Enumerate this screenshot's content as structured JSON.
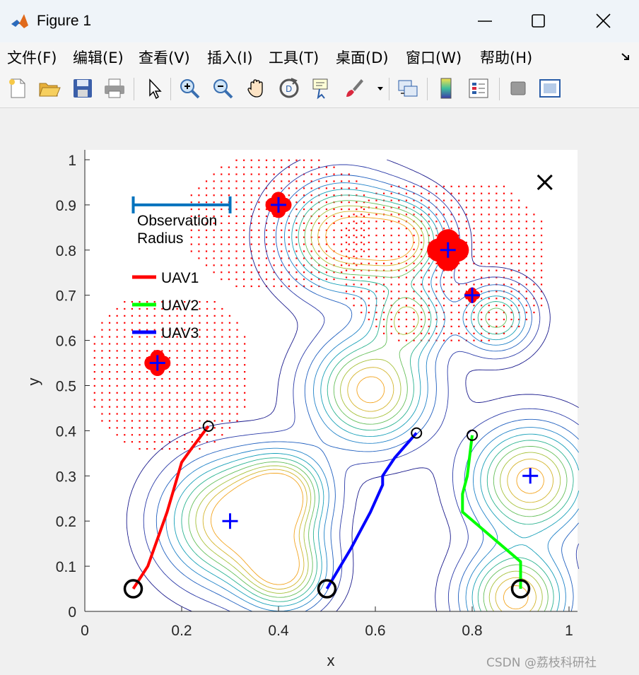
{
  "window": {
    "title": "Figure 1",
    "controls": [
      "minimize",
      "maximize",
      "close"
    ]
  },
  "menu": {
    "items": [
      "文件(F)",
      "编辑(E)",
      "查看(V)",
      "插入(I)",
      "工具(T)",
      "桌面(D)",
      "窗口(W)",
      "帮助(H)"
    ]
  },
  "toolbar": {
    "buttons": [
      "new-figure-icon",
      "open-file-icon",
      "save-icon",
      "print-icon",
      "pointer-icon",
      "zoom-in-icon",
      "zoom-out-icon",
      "pan-icon",
      "rotate-3d-icon",
      "data-cursor-icon",
      "brush-icon",
      "link-plot-icon",
      "colorbar-icon",
      "legend-icon",
      "hide-plot-tools-icon",
      "show-plot-tools-icon"
    ]
  },
  "watermark": "CSDN @荔枝科研社",
  "chart_data": {
    "type": "scatter",
    "xlabel": "x",
    "ylabel": "y",
    "xlim": [
      0,
      1
    ],
    "ylim": [
      0,
      1
    ],
    "xticks": [
      "0",
      "0.2",
      "0.4",
      "0.6",
      "0.8",
      "1"
    ],
    "yticks": [
      "0",
      "0.1",
      "0.2",
      "0.3",
      "0.4",
      "0.5",
      "0.6",
      "0.7",
      "0.8",
      "0.9",
      "1"
    ],
    "annotation": {
      "line1": "Observation",
      "line2": "Radius",
      "bar_x": [
        0.1,
        0.3
      ],
      "bar_y": 0.9
    },
    "legend": {
      "placement": "upper-left",
      "entries": [
        {
          "label": "UAV1",
          "color": "#ff0000"
        },
        {
          "label": "UAV2",
          "color": "#00ff00"
        },
        {
          "label": "UAV3",
          "color": "#0000ff"
        }
      ]
    },
    "goal_marker": {
      "x": 0.95,
      "y": 0.95,
      "symbol": "x"
    },
    "targets": [
      {
        "x": 0.3,
        "y": 0.2
      },
      {
        "x": 0.92,
        "y": 0.3
      },
      {
        "x": 0.15,
        "y": 0.55
      },
      {
        "x": 0.8,
        "y": 0.7
      },
      {
        "x": 0.75,
        "y": 0.8
      },
      {
        "x": 0.4,
        "y": 0.9
      }
    ],
    "discovered_targets": [
      {
        "x": 0.15,
        "y": 0.55,
        "size": "small"
      },
      {
        "x": 0.4,
        "y": 0.9,
        "size": "small"
      },
      {
        "x": 0.75,
        "y": 0.8,
        "size": "large"
      },
      {
        "x": 0.8,
        "y": 0.7,
        "size": "tiny"
      }
    ],
    "observed_regions": [
      {
        "x0": 0.02,
        "x1": 0.33,
        "y0": 0.36,
        "y1": 0.7
      },
      {
        "x0": 0.22,
        "x1": 0.58,
        "y0": 0.72,
        "y1": 1.0
      },
      {
        "x0": 0.54,
        "x1": 0.95,
        "y0": 0.6,
        "y1": 0.95
      }
    ],
    "density_peaks": [
      {
        "x": 0.3,
        "y": 0.2,
        "s": 0.09,
        "a": 1.0
      },
      {
        "x": 0.41,
        "y": 0.26,
        "s": 0.06,
        "a": 0.9
      },
      {
        "x": 0.41,
        "y": 0.09,
        "s": 0.06,
        "a": 0.9
      },
      {
        "x": 0.59,
        "y": 0.49,
        "s": 0.08,
        "a": 1.0
      },
      {
        "x": 0.53,
        "y": 0.83,
        "s": 0.08,
        "a": 1.0
      },
      {
        "x": 0.66,
        "y": 0.82,
        "s": 0.06,
        "a": 0.8
      },
      {
        "x": 0.67,
        "y": 0.65,
        "s": 0.05,
        "a": 0.7
      },
      {
        "x": 0.85,
        "y": 0.65,
        "s": 0.05,
        "a": 0.7
      },
      {
        "x": 0.92,
        "y": 0.29,
        "s": 0.08,
        "a": 1.0
      },
      {
        "x": 0.89,
        "y": 0.03,
        "s": 0.07,
        "a": 1.0
      }
    ],
    "series": [
      {
        "name": "UAV1",
        "color": "#ff0000",
        "path": [
          [
            0.1,
            0.05
          ],
          [
            0.13,
            0.1
          ],
          [
            0.17,
            0.22
          ],
          [
            0.2,
            0.33
          ],
          [
            0.22,
            0.36
          ],
          [
            0.255,
            0.41
          ]
        ],
        "start": [
          0.1,
          0.05
        ],
        "end": [
          0.255,
          0.41
        ]
      },
      {
        "name": "UAV2",
        "color": "#00ff00",
        "path": [
          [
            0.9,
            0.05
          ],
          [
            0.9,
            0.11
          ],
          [
            0.78,
            0.22
          ],
          [
            0.78,
            0.26
          ],
          [
            0.79,
            0.3
          ],
          [
            0.8,
            0.39
          ]
        ],
        "start": [
          0.9,
          0.05
        ],
        "end": [
          0.8,
          0.39
        ]
      },
      {
        "name": "UAV3",
        "color": "#0000ff",
        "path": [
          [
            0.5,
            0.05
          ],
          [
            0.55,
            0.14
          ],
          [
            0.59,
            0.22
          ],
          [
            0.615,
            0.28
          ],
          [
            0.615,
            0.3
          ],
          [
            0.64,
            0.34
          ],
          [
            0.685,
            0.395
          ]
        ],
        "start": [
          0.5,
          0.05
        ],
        "end": [
          0.685,
          0.395
        ]
      }
    ]
  }
}
